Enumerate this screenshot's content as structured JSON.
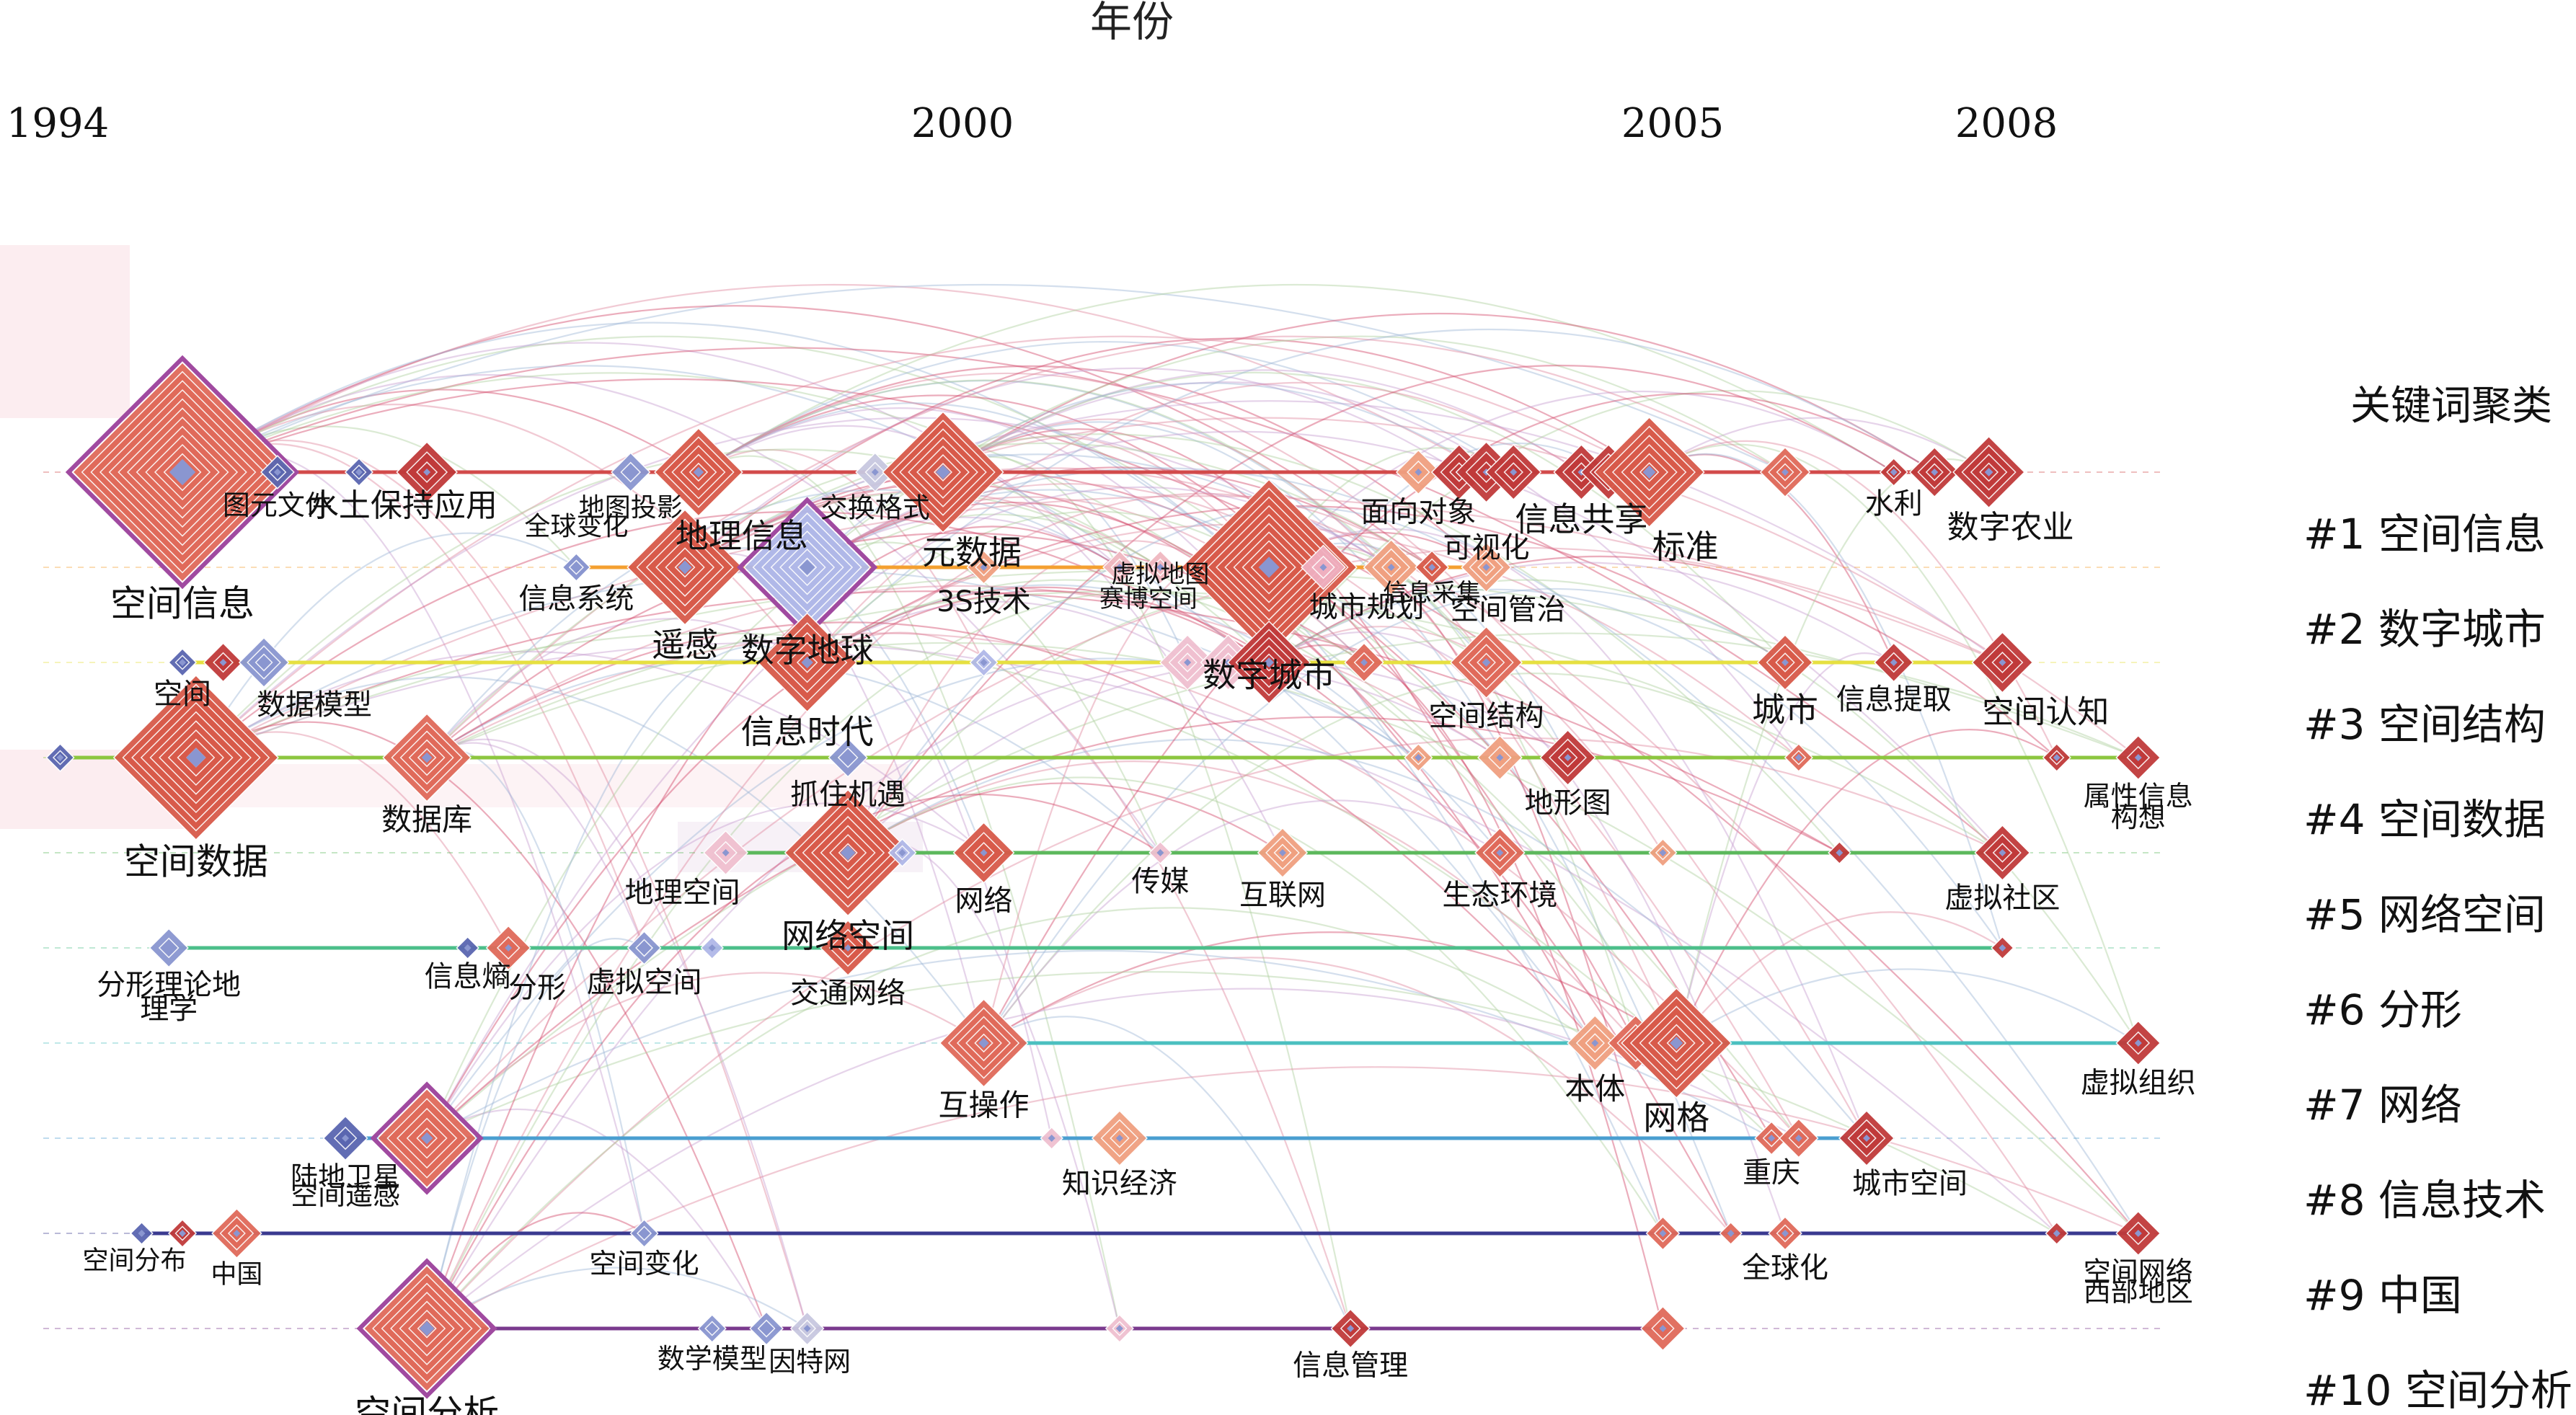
{
  "chart_data": {
    "type": "timeline",
    "title": "年份",
    "x_ticks": [
      {
        "label": "1994",
        "year": 1994
      },
      {
        "label": "2000",
        "year": 2000
      },
      {
        "label": "2005",
        "year": 2005
      },
      {
        "label": "2008",
        "year": 2008
      }
    ],
    "xlim": [
      1994,
      2008
    ],
    "legend_title": "关键词聚类",
    "clusters": [
      {
        "label": "#1 空间信息",
        "color": "#d24a4a"
      },
      {
        "label": "#2 数字城市",
        "color": "#f4a030"
      },
      {
        "label": "#3 空间结构",
        "color": "#e6e040"
      },
      {
        "label": "#4 空间数据",
        "color": "#8cc63f"
      },
      {
        "label": "#5 网络空间",
        "color": "#5cb85c"
      },
      {
        "label": "#6 分形",
        "color": "#4cbf8a"
      },
      {
        "label": "#7 网络",
        "color": "#4bc0c0"
      },
      {
        "label": "#8 信息技术",
        "color": "#4a9ed0"
      },
      {
        "label": "#9 中国",
        "color": "#3a3a90"
      },
      {
        "label": "#10 空间分析",
        "color": "#7a3a8e"
      }
    ],
    "nodes": [
      {
        "c": 0,
        "year": 1994.6,
        "s": 4,
        "label": "空间信息",
        "color": "#e06a5a",
        "ring": "#a04aa0",
        "lbl": "below",
        "fs": 50
      },
      {
        "c": 0,
        "year": 1995.3,
        "s": 0.6,
        "label": "图元文件",
        "color": "#5a66b0",
        "lbl": "below",
        "fs": 38
      },
      {
        "c": 0,
        "year": 1995.9,
        "s": 0.5,
        "label": "水土保持应用",
        "color": "#5a66b0",
        "lbl": "below",
        "fs": 44,
        "dx": 60
      },
      {
        "c": 0,
        "year": 1996.4,
        "s": 1.1,
        "label": "",
        "color": "#c03a3a"
      },
      {
        "c": 0,
        "year": 1997.9,
        "s": 0.7,
        "label": "地图投影",
        "color": "#8a96d0",
        "lbl": "below",
        "fs": 36
      },
      {
        "c": 0,
        "year": 1998.4,
        "s": 1.6,
        "label": "地理信息",
        "color": "#d85a4a",
        "lbl": "below",
        "fs": 46,
        "dx": 60
      },
      {
        "c": 0,
        "year": 1999.7,
        "s": 0.7,
        "label": "交换格式",
        "color": "#c8c8e0",
        "lbl": "below",
        "fs": 38
      },
      {
        "c": 0,
        "year": 2000.2,
        "s": 2.2,
        "label": "元数据",
        "color": "#d85a4a",
        "lbl": "below",
        "fs": 46,
        "dx": 40
      },
      {
        "c": 0,
        "year": 2003.7,
        "s": 0.8,
        "label": "面向对象",
        "color": "#f0a080",
        "lbl": "below",
        "fs": 40
      },
      {
        "c": 0,
        "year": 2004.0,
        "s": 1.0,
        "label": "",
        "color": "#c03a3a"
      },
      {
        "c": 0,
        "year": 2004.2,
        "s": 1.1,
        "label": "可视化",
        "color": "#c03a3a",
        "lbl": "below",
        "fs": 40,
        "dy": 38
      },
      {
        "c": 0,
        "year": 2004.4,
        "s": 1.0,
        "label": "",
        "color": "#c03a3a"
      },
      {
        "c": 0,
        "year": 2004.9,
        "s": 1.0,
        "label": "信息共享",
        "color": "#c03a3a",
        "lbl": "below",
        "fs": 46
      },
      {
        "c": 0,
        "year": 2005.1,
        "s": 1.0,
        "label": "",
        "color": "#c03a3a"
      },
      {
        "c": 0,
        "year": 2005.4,
        "s": 2.0,
        "label": "标准",
        "color": "#d85a4a",
        "lbl": "below",
        "fs": 46,
        "dx": 50
      },
      {
        "c": 0,
        "year": 2006.4,
        "s": 0.9,
        "label": "",
        "color": "#e06a5a"
      },
      {
        "c": 0,
        "year": 2007.2,
        "s": 0.5,
        "label": "水利",
        "color": "#c03a3a",
        "lbl": "below",
        "fs": 40
      },
      {
        "c": 0,
        "year": 2007.5,
        "s": 0.9,
        "label": "",
        "color": "#c03a3a"
      },
      {
        "c": 0,
        "year": 2007.9,
        "s": 1.3,
        "label": "数字农业",
        "color": "#c03a3a",
        "lbl": "below",
        "fs": 44,
        "dx": 30
      },
      {
        "c": 1,
        "year": 1997.5,
        "s": 0.5,
        "label": "全球变化",
        "color": "#8a96d0",
        "lbl": "above",
        "fs": 36,
        "dy": -12
      },
      {
        "c": 1,
        "year": 1997.5,
        "s": 0.5,
        "label": "信息系统",
        "color": "#8a96d0",
        "lbl": "below",
        "fs": 40
      },
      {
        "c": 1,
        "year": 1998.3,
        "s": 2.1,
        "label": "遥感",
        "color": "#d85a4a",
        "lbl": "below",
        "fs": 46
      },
      {
        "c": 1,
        "year": 1999.2,
        "s": 2.3,
        "label": "数字地球",
        "color": "#b0b8e8",
        "ring": "#a04aa0",
        "lbl": "below",
        "fs": 46
      },
      {
        "c": 1,
        "year": 2000.5,
        "s": 0.6,
        "label": "3S技术",
        "color": "#f0a080",
        "lbl": "below",
        "fs": 40
      },
      {
        "c": 1,
        "year": 2001.8,
        "s": 0.6,
        "label": "虚拟地图",
        "color": "#f0b8c0",
        "lbl": "below",
        "fs": 34,
        "dy": -34
      },
      {
        "c": 1,
        "year": 2001.5,
        "s": 0.6,
        "label": "赛博空间",
        "color": "#f0b8c0",
        "lbl": "below",
        "fs": 34,
        "dx": 40
      },
      {
        "c": 1,
        "year": 2002.2,
        "s": 0.8,
        "label": "",
        "color": "#f0b0c0"
      },
      {
        "c": 1,
        "year": 2002.6,
        "s": 3.2,
        "label": "数字城市",
        "color": "#d85a4a",
        "lbl": "below",
        "fs": 46
      },
      {
        "c": 1,
        "year": 2003.0,
        "s": 0.8,
        "label": "城市规划",
        "color": "#f0b0c0",
        "lbl": "below",
        "fs": 40,
        "dx": 60
      },
      {
        "c": 1,
        "year": 2003.5,
        "s": 1.0,
        "label": "",
        "color": "#f0a080"
      },
      {
        "c": 1,
        "year": 2003.8,
        "s": 0.6,
        "label": "信息采集",
        "color": "#d85a4a",
        "lbl": "below",
        "fs": 34,
        "dy": -8
      },
      {
        "c": 1,
        "year": 2004.2,
        "s": 0.9,
        "label": "空间管治",
        "color": "#f0a080",
        "lbl": "below",
        "fs": 40,
        "dx": 30
      },
      {
        "c": 2,
        "year": 1994.6,
        "s": 0.5,
        "label": "空间",
        "color": "#5a66b0",
        "lbl": "below",
        "fs": 40
      },
      {
        "c": 2,
        "year": 1994.9,
        "s": 0.7,
        "label": "",
        "color": "#c03a3a"
      },
      {
        "c": 2,
        "year": 1995.2,
        "s": 0.9,
        "label": "数据模型",
        "color": "#8a96d0",
        "lbl": "below",
        "fs": 40,
        "dx": 70
      },
      {
        "c": 2,
        "year": 1999.2,
        "s": 1.8,
        "label": "信息时代",
        "color": "#d85a4a",
        "lbl": "below",
        "fs": 46
      },
      {
        "c": 2,
        "year": 2000.5,
        "s": 0.5,
        "label": "",
        "color": "#b0b8e8"
      },
      {
        "c": 2,
        "year": 2002.0,
        "s": 1.0,
        "label": "",
        "color": "#f0c0d0"
      },
      {
        "c": 2,
        "year": 2002.3,
        "s": 1.0,
        "label": "",
        "color": "#f0c0d0"
      },
      {
        "c": 2,
        "year": 2002.6,
        "s": 1.5,
        "label": "",
        "color": "#c03a3a"
      },
      {
        "c": 2,
        "year": 2003.3,
        "s": 0.7,
        "label": "",
        "color": "#e06a5a"
      },
      {
        "c": 2,
        "year": 2004.2,
        "s": 1.3,
        "label": "空间结构",
        "color": "#e06a5a",
        "lbl": "below",
        "fs": 40
      },
      {
        "c": 2,
        "year": 2006.4,
        "s": 1.0,
        "label": "城市",
        "color": "#d85a4a",
        "lbl": "below",
        "fs": 46
      },
      {
        "c": 2,
        "year": 2007.2,
        "s": 0.7,
        "label": "信息提取",
        "color": "#c03a3a",
        "lbl": "below",
        "fs": 40
      },
      {
        "c": 2,
        "year": 2008.0,
        "s": 1.1,
        "label": "空间认知",
        "color": "#c03a3a",
        "lbl": "below",
        "fs": 44,
        "dx": 60
      },
      {
        "c": 3,
        "year": 1993.7,
        "s": 0.5,
        "label": "",
        "color": "#5a66b0"
      },
      {
        "c": 3,
        "year": 1994.7,
        "s": 3.0,
        "label": "空间数据",
        "color": "#d85a4a",
        "lbl": "below",
        "fs": 50
      },
      {
        "c": 3,
        "year": 1996.4,
        "s": 1.6,
        "label": "数据库",
        "color": "#e06a5a",
        "lbl": "below",
        "fs": 42
      },
      {
        "c": 3,
        "year": 1999.5,
        "s": 0.7,
        "label": "抓住机遇",
        "color": "#8a96d0",
        "lbl": "below",
        "fs": 40
      },
      {
        "c": 3,
        "year": 2003.7,
        "s": 0.5,
        "label": "",
        "color": "#f0a080"
      },
      {
        "c": 3,
        "year": 2004.3,
        "s": 0.8,
        "label": "",
        "color": "#f0a080"
      },
      {
        "c": 3,
        "year": 2004.8,
        "s": 1.0,
        "label": "地形图",
        "color": "#c03a3a",
        "lbl": "below",
        "fs": 40
      },
      {
        "c": 3,
        "year": 2006.5,
        "s": 0.5,
        "label": "",
        "color": "#e06a5a"
      },
      {
        "c": 3,
        "year": 2008.4,
        "s": 0.5,
        "label": "",
        "color": "#c03a3a"
      },
      {
        "c": 3,
        "year": 2009.0,
        "s": 0.8,
        "label": "属性信息",
        "color": "#c03a3a",
        "lbl": "below",
        "fs": 38
      },
      {
        "c": 3,
        "year": 2009.0,
        "s": 0.0,
        "label": "构想",
        "color": "#c03a3a",
        "lbl": "below",
        "fs": 38,
        "dy": 46
      },
      {
        "c": 4,
        "year": 1998.6,
        "s": 0.8,
        "label": "地理空间",
        "color": "#f0c0d0",
        "lbl": "below",
        "fs": 40,
        "dx": -60
      },
      {
        "c": 4,
        "year": 1999.5,
        "s": 2.3,
        "label": "网络空间",
        "color": "#d85a4a",
        "lbl": "below",
        "fs": 46
      },
      {
        "c": 4,
        "year": 1999.9,
        "s": 0.5,
        "label": "",
        "color": "#b0b8e8"
      },
      {
        "c": 4,
        "year": 2000.5,
        "s": 1.1,
        "label": "网络",
        "color": "#d85a4a",
        "lbl": "below",
        "fs": 40
      },
      {
        "c": 4,
        "year": 2001.8,
        "s": 0.4,
        "label": "传媒",
        "color": "#f0c0d0",
        "lbl": "below",
        "fs": 40
      },
      {
        "c": 4,
        "year": 2002.7,
        "s": 0.9,
        "label": "互联网",
        "color": "#f0a080",
        "lbl": "below",
        "fs": 40
      },
      {
        "c": 4,
        "year": 2004.3,
        "s": 0.9,
        "label": "生态环境",
        "color": "#e06a5a",
        "lbl": "below",
        "fs": 40
      },
      {
        "c": 4,
        "year": 2005.5,
        "s": 0.5,
        "label": "",
        "color": "#f0a080"
      },
      {
        "c": 4,
        "year": 2006.8,
        "s": 0.4,
        "label": "",
        "color": "#c03a3a"
      },
      {
        "c": 4,
        "year": 2008.0,
        "s": 1.0,
        "label": "虚拟社区",
        "color": "#c03a3a",
        "lbl": "below",
        "fs": 40
      },
      {
        "c": 5,
        "year": 1994.5,
        "s": 0.7,
        "label": "分形理论地",
        "color": "#8a96d0",
        "lbl": "below",
        "fs": 40
      },
      {
        "c": 5,
        "year": 1994.5,
        "s": 0.0,
        "label": "理学",
        "color": "#8a96d0",
        "lbl": "below",
        "fs": 40,
        "dy": 46
      },
      {
        "c": 5,
        "year": 1996.7,
        "s": 0.4,
        "label": "信息熵",
        "color": "#5a66b0",
        "lbl": "below",
        "fs": 40
      },
      {
        "c": 5,
        "year": 1997.0,
        "s": 0.8,
        "label": "分形",
        "color": "#e06a5a",
        "lbl": "below",
        "fs": 40,
        "dx": 40
      },
      {
        "c": 5,
        "year": 1998.0,
        "s": 0.6,
        "label": "虚拟空间",
        "color": "#8a96d0",
        "lbl": "below",
        "fs": 40
      },
      {
        "c": 5,
        "year": 1998.5,
        "s": 0.4,
        "label": "",
        "color": "#b0b8e8"
      },
      {
        "c": 5,
        "year": 1999.5,
        "s": 1.0,
        "label": "交通网络",
        "color": "#d85a4a",
        "lbl": "below",
        "fs": 40
      },
      {
        "c": 5,
        "year": 2008.0,
        "s": 0.4,
        "label": "",
        "color": "#c03a3a"
      },
      {
        "c": 6,
        "year": 2000.5,
        "s": 1.6,
        "label": "互操作",
        "color": "#e06a5a",
        "lbl": "below",
        "fs": 42
      },
      {
        "c": 6,
        "year": 2005.0,
        "s": 1.0,
        "label": "本体",
        "color": "#f0a080",
        "lbl": "below",
        "fs": 42
      },
      {
        "c": 6,
        "year": 2005.3,
        "s": 1.0,
        "label": "",
        "color": "#e06a5a"
      },
      {
        "c": 6,
        "year": 2005.6,
        "s": 2.0,
        "label": "网格",
        "color": "#d85a4a",
        "lbl": "below",
        "fs": 46
      },
      {
        "c": 6,
        "year": 2009.0,
        "s": 0.8,
        "label": "虚拟组织",
        "color": "#c03a3a",
        "lbl": "below",
        "fs": 40
      },
      {
        "c": 7,
        "year": 1995.8,
        "s": 0.8,
        "label": "陆地卫星",
        "color": "#5a66b0",
        "lbl": "below",
        "fs": 38
      },
      {
        "c": 7,
        "year": 1995.8,
        "s": 0.0,
        "label": "空间遥感",
        "color": "#5a66b0",
        "lbl": "below",
        "fs": 38,
        "dy": 42
      },
      {
        "c": 7,
        "year": 1996.4,
        "s": 1.8,
        "label": "",
        "color": "#e06a5a",
        "ring": "#a04aa0"
      },
      {
        "c": 7,
        "year": 2001.0,
        "s": 0.4,
        "label": "",
        "color": "#f0c0d0"
      },
      {
        "c": 7,
        "year": 2001.5,
        "s": 1.0,
        "label": "知识经济",
        "color": "#f0a080",
        "lbl": "below",
        "fs": 40
      },
      {
        "c": 7,
        "year": 2006.3,
        "s": 0.6,
        "label": "重庆",
        "color": "#e06a5a",
        "lbl": "below",
        "fs": 40
      },
      {
        "c": 7,
        "year": 2006.5,
        "s": 0.7,
        "label": "",
        "color": "#e06a5a"
      },
      {
        "c": 7,
        "year": 2007.0,
        "s": 1.0,
        "label": "城市空间",
        "color": "#c03a3a",
        "lbl": "below",
        "fs": 40,
        "dx": 60
      },
      {
        "c": 8,
        "year": 1994.3,
        "s": 0.4,
        "label": "空间分布",
        "color": "#5a66b0",
        "lbl": "below",
        "fs": 36,
        "dx": -10
      },
      {
        "c": 8,
        "year": 1994.6,
        "s": 0.5,
        "label": "",
        "color": "#c03a3a"
      },
      {
        "c": 8,
        "year": 1995.0,
        "s": 0.9,
        "label": "中国",
        "color": "#e06a5a",
        "lbl": "below",
        "fs": 36
      },
      {
        "c": 8,
        "year": 1998.0,
        "s": 0.5,
        "label": "空间变化",
        "color": "#8a96d0",
        "lbl": "below",
        "fs": 38
      },
      {
        "c": 8,
        "year": 2005.5,
        "s": 0.6,
        "label": "",
        "color": "#e06a5a"
      },
      {
        "c": 8,
        "year": 2006.0,
        "s": 0.4,
        "label": "",
        "color": "#e06a5a"
      },
      {
        "c": 8,
        "year": 2006.4,
        "s": 0.6,
        "label": "全球化",
        "color": "#e06a5a",
        "lbl": "below",
        "fs": 40
      },
      {
        "c": 8,
        "year": 2008.4,
        "s": 0.4,
        "label": "",
        "color": "#c03a3a"
      },
      {
        "c": 8,
        "year": 2009.0,
        "s": 0.8,
        "label": "空间网络",
        "color": "#c03a3a",
        "lbl": "below",
        "fs": 38
      },
      {
        "c": 8,
        "year": 2009.0,
        "s": 0.0,
        "label": "西部地区",
        "color": "#c03a3a",
        "lbl": "below",
        "fs": 38,
        "dy": 44
      },
      {
        "c": 9,
        "year": 1996.4,
        "s": 2.3,
        "label": "空间分析",
        "color": "#e06a5a",
        "ring": "#a04aa0",
        "lbl": "below",
        "fs": 50
      },
      {
        "c": 9,
        "year": 1998.5,
        "s": 0.5,
        "label": "数学模型",
        "color": "#8a96d0",
        "lbl": "below",
        "fs": 38
      },
      {
        "c": 9,
        "year": 1998.9,
        "s": 0.6,
        "label": "因特网",
        "color": "#8a96d0",
        "lbl": "below",
        "fs": 38,
        "dx": 60
      },
      {
        "c": 9,
        "year": 1999.2,
        "s": 0.6,
        "label": "",
        "color": "#c8c8e0"
      },
      {
        "c": 9,
        "year": 2001.5,
        "s": 0.5,
        "label": "",
        "color": "#f0c0d0"
      },
      {
        "c": 9,
        "year": 2003.2,
        "s": 0.7,
        "label": "信息管理",
        "color": "#c03a3a",
        "lbl": "below",
        "fs": 40
      },
      {
        "c": 9,
        "year": 2005.5,
        "s": 0.8,
        "label": "",
        "color": "#e06a5a"
      }
    ]
  }
}
